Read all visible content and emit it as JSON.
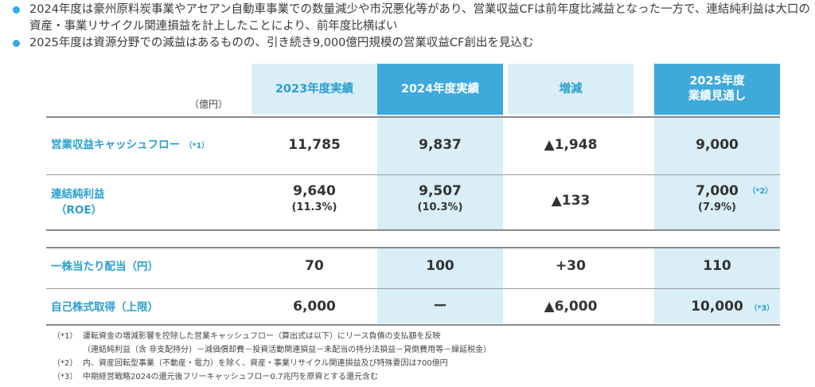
{
  "bullets": [
    "2024年度は豪州原料炭事業やアセアン自動車事業での数量減少や市況悪化等があり、営業収益CFは前年度比減益となった一方で、連結純利益は大口の資産・事業リサイクル関連損益を計上したことにより、前年度比横ばい",
    "2025年度は資源分野での減益はあるものの、引き続き9,000億円規模の営業収益CF創出を見込む"
  ],
  "table": {
    "unit": "（億円）",
    "headers": {
      "fy2023": "2023年度実績",
      "fy2024": "2024年度実績",
      "change": "増減",
      "fy2025_line1": "2025年度",
      "fy2025_line2": "業績見通し"
    },
    "rows": [
      {
        "label": "営業収益キャッシュフロー",
        "label_note": "（*1）",
        "fy2023": "11,785",
        "fy2024": "9,837",
        "change": "▲1,948",
        "fy2025": "9,000"
      },
      {
        "label": "連結純利益",
        "label_sub": "（ROE）",
        "fy2023": "9,640",
        "fy2023_sub": "(11.3%)",
        "fy2024": "9,507",
        "fy2024_sub": "(10.3%)",
        "change": "▲133",
        "fy2025": "7,000",
        "fy2025_sub": "(7.9%)",
        "fy2025_note": "（*2）"
      },
      {
        "label": "一株当たり配当（円）",
        "fy2023": "70",
        "fy2024": "100",
        "change": "+30",
        "fy2025": "110"
      },
      {
        "label": "自己株式取得（上限）",
        "fy2023": "6,000",
        "fy2024": "ー",
        "change": "▲6,000",
        "fy2025": "10,000",
        "fy2025_note": "（*3）"
      }
    ]
  },
  "footnotes": [
    {
      "mark": "（*1）",
      "text": "運転資金の増減影響を控除した営業キャッシュフロー（算出式は以下）にリース負債の支払額を反映"
    },
    {
      "mark": "",
      "text": "（連結純利益（含 非支配持分）－減価償却費－投資活動関連損益－未配当の持分法損益－貸倒費用等－繰延税金）"
    },
    {
      "mark": "（*2）",
      "text": "内、資産回転型事業（不動産・電力）を除く、資産・事業リサイクル関連損益及び特殊要因は700億円"
    },
    {
      "mark": "（*3）",
      "text": "中期経営戦略2024の還元後フリーキャッシュフロー0.7兆円を原資とする還元含む"
    }
  ],
  "colors": {
    "accent": "#2b9ed0",
    "light_column": "#d9eef7",
    "dark_header": "#3fa9dc"
  }
}
